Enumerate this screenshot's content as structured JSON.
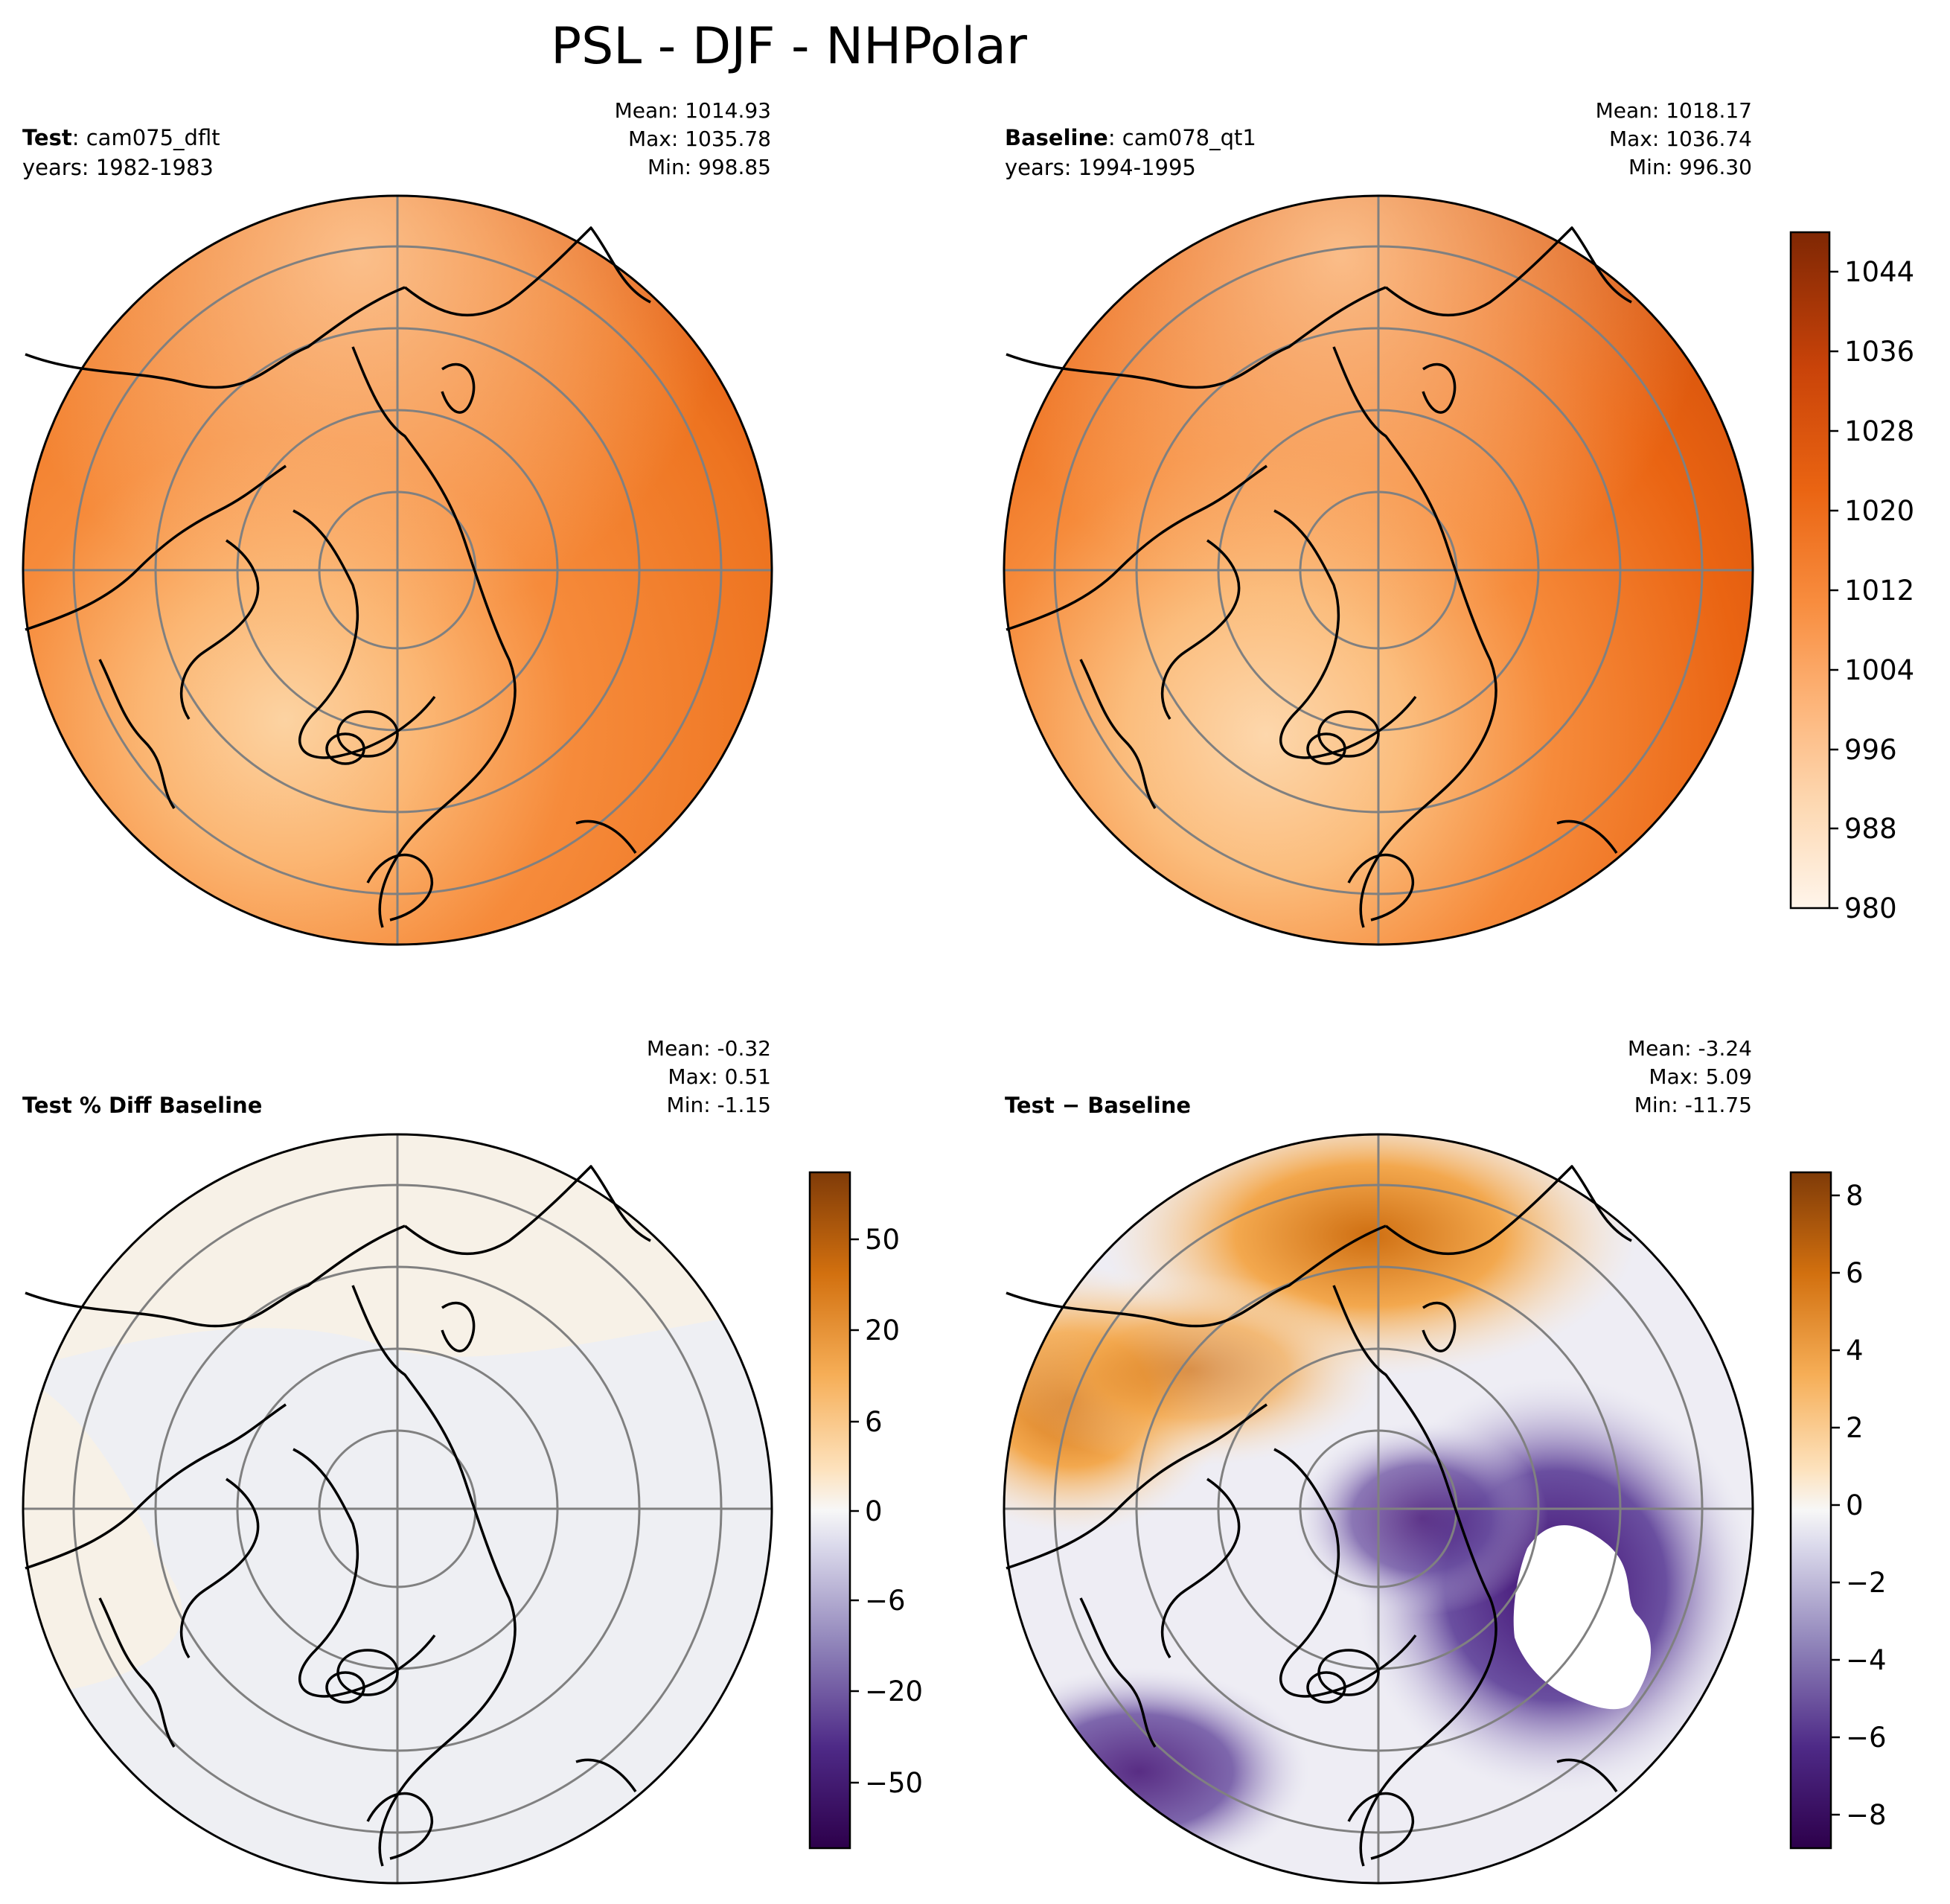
{
  "figure_title": "PSL - DJF - NHPolar",
  "panels": [
    {
      "label_bold": "Test",
      "label_rest": ": cam075_dflt",
      "years": "years: 1982-1983",
      "stats": [
        "Mean: 1014.93",
        "Max: 1035.78",
        "Min: 998.85"
      ]
    },
    {
      "label_bold": "Baseline",
      "label_rest": ": cam078_qt1",
      "years": "years: 1994-1995",
      "stats": [
        "Mean: 1018.17",
        "Max: 1036.74",
        "Min: 996.30"
      ]
    },
    {
      "label_bold": "Test % Diff Baseline",
      "label_rest": "",
      "years": "",
      "stats": [
        "Mean: -0.32",
        "Max:  0.51",
        "Min: -1.15"
      ]
    },
    {
      "label_bold": "Test − Baseline",
      "label_rest": "",
      "years": "",
      "stats": [
        "Mean: -3.24",
        "Max:  5.09",
        "Min: -11.75"
      ]
    }
  ],
  "colorbars": {
    "main": {
      "ticks": [
        "1044",
        "1036",
        "1028",
        "1020",
        "1012",
        "1004",
        "996",
        "988",
        "980"
      ]
    },
    "pct": {
      "ticks": [
        "50",
        "20",
        "6",
        "0",
        "−6",
        "−20",
        "−50"
      ]
    },
    "diff": {
      "ticks": [
        "8",
        "6",
        "4",
        "2",
        "0",
        "−2",
        "−4",
        "−6",
        "−8"
      ]
    }
  },
  "colors": {
    "orange_base": "#f5893a",
    "orange_dark": "#e05a0d",
    "orange_light": "#fcc98e",
    "purple_dark": "#3f0b72",
    "graticule": "#808080"
  },
  "chart_data": [
    {
      "type": "heatmap",
      "title": "Test : cam075_dflt",
      "variable": "PSL",
      "season": "DJF",
      "region": "NHPolar",
      "years": "1982-1983",
      "mean": 1014.93,
      "max": 1035.78,
      "min": 998.85,
      "colorbar_range": [
        980,
        1048
      ]
    },
    {
      "type": "heatmap",
      "title": "Baseline : cam078_qt1",
      "variable": "PSL",
      "season": "DJF",
      "region": "NHPolar",
      "years": "1994-1995",
      "mean": 1018.17,
      "max": 1036.74,
      "min": 996.3,
      "colorbar_range": [
        980,
        1048
      ]
    },
    {
      "type": "heatmap",
      "title": "Test % Diff Baseline",
      "mean": -0.32,
      "max": 0.51,
      "min": -1.15,
      "colorbar_ticks": [
        -50,
        -20,
        -6,
        0,
        6,
        20,
        50
      ]
    },
    {
      "type": "heatmap",
      "title": "Test − Baseline",
      "mean": -3.24,
      "max": 5.09,
      "min": -11.75,
      "colorbar_range": [
        -9,
        8.5
      ],
      "colorbar_ticks": [
        -8,
        -6,
        -4,
        -2,
        0,
        2,
        4,
        6,
        8
      ]
    }
  ]
}
